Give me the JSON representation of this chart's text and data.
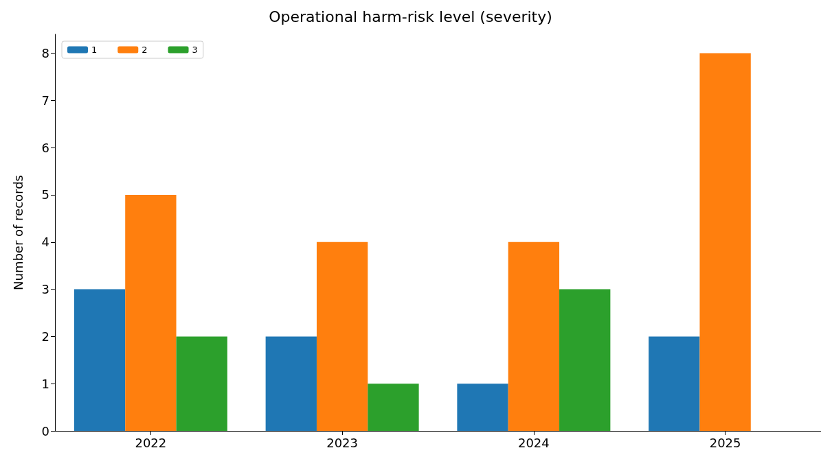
{
  "chart_data": {
    "type": "bar",
    "title": "Operational harm-risk level (severity)",
    "ylabel": "Number of records",
    "categories": [
      "2022",
      "2023",
      "2024",
      "2025"
    ],
    "series": [
      {
        "name": "1",
        "color": "#1f77b4",
        "values": [
          3,
          2,
          1,
          2
        ]
      },
      {
        "name": "2",
        "color": "#ff7f0e",
        "values": [
          5,
          4,
          4,
          8
        ]
      },
      {
        "name": "3",
        "color": "#2ca02c",
        "values": [
          2,
          1,
          3,
          0
        ]
      }
    ],
    "ylim": [
      0,
      8.4
    ],
    "yticks": [
      0,
      1,
      2,
      3,
      4,
      5,
      6,
      7,
      8
    ],
    "grid": false,
    "legend": "top left"
  }
}
